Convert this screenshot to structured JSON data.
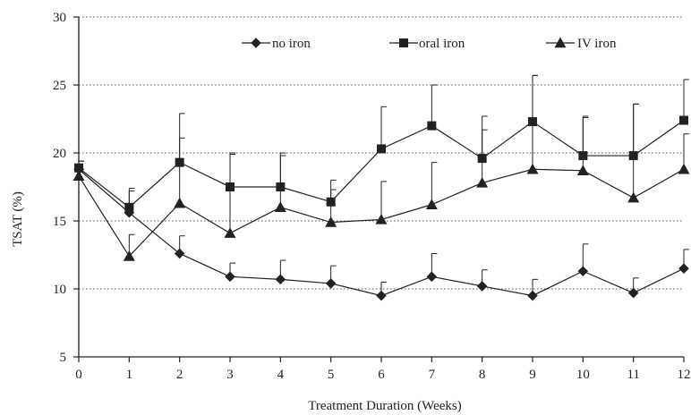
{
  "chart_data": {
    "type": "line",
    "xlabel": "Treatment Duration (Weeks)",
    "ylabel": "TSAT (%)",
    "xlim": [
      0,
      12
    ],
    "ylim": [
      5,
      30
    ],
    "x": [
      0,
      1,
      2,
      3,
      4,
      5,
      6,
      7,
      8,
      9,
      10,
      11,
      12
    ],
    "x_ticks": [
      "0",
      "1",
      "2",
      "3",
      "4",
      "5",
      "6",
      "7",
      "8",
      "9",
      "10",
      "11",
      "12"
    ],
    "y_ticks": [
      "5",
      "10",
      "15",
      "20",
      "25",
      "30"
    ],
    "grid": "horizontal dotted",
    "legend_position": "top",
    "series": [
      {
        "name": "no iron",
        "marker": "diamond",
        "values": [
          18.8,
          15.6,
          12.6,
          10.9,
          10.7,
          10.4,
          9.5,
          10.9,
          10.2,
          9.5,
          11.3,
          9.7,
          11.5
        ],
        "errors": [
          0.6,
          1.6,
          1.3,
          1.0,
          1.4,
          1.3,
          1.0,
          1.7,
          1.2,
          1.2,
          2.0,
          1.1,
          1.4
        ]
      },
      {
        "name": "oral iron",
        "marker": "square",
        "values": [
          18.9,
          16.0,
          19.3,
          17.5,
          17.5,
          16.4,
          20.3,
          22.0,
          19.6,
          22.3,
          19.8,
          19.8,
          22.4
        ],
        "errors": [
          0.5,
          1.4,
          3.6,
          2.5,
          2.5,
          1.6,
          3.1,
          3.0,
          3.1,
          3.4,
          2.9,
          3.8,
          3.0
        ]
      },
      {
        "name": "IV iron",
        "marker": "triangle",
        "values": [
          18.3,
          12.4,
          16.3,
          14.1,
          16.0,
          14.9,
          15.1,
          16.2,
          17.8,
          18.8,
          18.7,
          16.7,
          18.8
        ],
        "errors": [
          0.5,
          1.6,
          4.8,
          5.8,
          3.8,
          2.4,
          2.8,
          3.1,
          3.9,
          6.9,
          3.9,
          6.9,
          2.6
        ]
      }
    ]
  }
}
